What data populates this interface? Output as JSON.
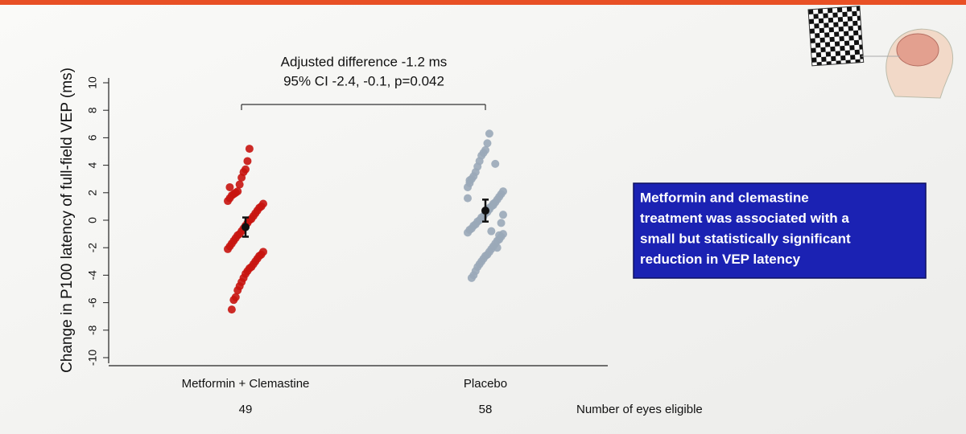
{
  "chart_data": {
    "type": "strip",
    "y_label": "Change in P100 latency of full-field VEP (ms)",
    "annotation": [
      "Adjusted difference -1.2 ms",
      "95% CI -2.4, -0.1, p=0.042"
    ],
    "count_label": "Number of eyes eligible",
    "ylim": [
      -10,
      10
    ],
    "yticks": [
      -10,
      -8,
      -6,
      -4,
      -2,
      0,
      2,
      4,
      6,
      8,
      10
    ],
    "groups": [
      {
        "label": "Metformin + Clemastine",
        "count": "49",
        "color": "#c8140f",
        "mean": -0.5,
        "ci_low": -1.2,
        "ci_high": 0.2,
        "values": [
          5.2,
          4.3,
          3.7,
          3.5,
          3.1,
          2.6,
          2.1,
          2.0,
          1.9,
          1.8,
          1.6,
          1.4,
          1.2,
          1.0,
          0.9,
          0.7,
          0.5,
          0.3,
          0.1,
          0.0,
          -0.2,
          -0.4,
          -0.6,
          -0.8,
          -1.0,
          -1.1,
          -1.3,
          -1.5,
          -1.7,
          -1.9,
          -2.1,
          -2.3,
          -2.5,
          -2.6,
          -2.8,
          -3.0,
          -3.2,
          -3.4,
          -3.5,
          -3.7,
          -3.9,
          -4.2,
          -4.5,
          -4.8,
          -5.1,
          -5.6,
          -5.8,
          -6.5,
          2.4
        ]
      },
      {
        "label": "Placebo",
        "count": "58",
        "color": "#9aa9b8",
        "mean": 0.7,
        "ci_low": -0.1,
        "ci_high": 1.5,
        "values": [
          6.3,
          5.6,
          5.1,
          4.9,
          4.7,
          4.3,
          3.9,
          3.5,
          3.2,
          3.0,
          2.7,
          2.4,
          2.1,
          1.9,
          1.7,
          1.5,
          1.3,
          1.1,
          1.0,
          0.8,
          0.6,
          0.5,
          0.3,
          0.2,
          0.0,
          -0.1,
          -0.3,
          -0.4,
          -0.6,
          -0.7,
          -0.9,
          -1.0,
          -1.2,
          -1.4,
          -1.5,
          -1.7,
          -1.9,
          -2.1,
          -2.3,
          -2.5,
          -2.6,
          -2.8,
          -3.0,
          -3.2,
          -3.4,
          -3.7,
          -4.0,
          -4.2,
          2.9,
          1.6,
          0.4,
          -0.2,
          -1.1,
          -2.0,
          4.1,
          1.2,
          -0.8,
          0.9
        ]
      }
    ],
    "callout": [
      "Metformin and clemastine",
      "treatment was associated with a",
      "small but statistically significant",
      "reduction in VEP latency"
    ]
  }
}
